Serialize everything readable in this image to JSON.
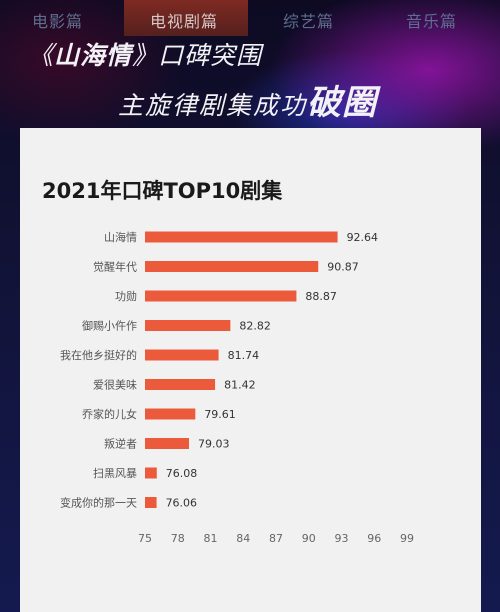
{
  "tabs": [
    "电影篇",
    "电视剧篇",
    "综艺篇",
    "音乐篇"
  ],
  "active_tab": 1,
  "headline": {
    "line1_open": "《",
    "line1_title": "山海情",
    "line1_close": "》",
    "line1_rest": "口碑突围",
    "line2_main": "主旋律剧集成功",
    "line2_emph": "破圈"
  },
  "chart_data": {
    "type": "bar",
    "orientation": "horizontal",
    "title": "2021年口碑TOP10剧集",
    "categories": [
      "山海情",
      "觉醒年代",
      "功勋",
      "御赐小仵作",
      "我在他乡挺好的",
      "爱很美味",
      "乔家的儿女",
      "叛逆者",
      "扫黑风暴",
      "变成你的那一天"
    ],
    "values": [
      92.64,
      90.87,
      88.87,
      82.82,
      81.74,
      81.42,
      79.61,
      79.03,
      76.08,
      76.06
    ],
    "value_labels": [
      "92.64",
      "90.87",
      "88.87",
      "82.82",
      "81.74",
      "81.42",
      "79.61",
      "79.03",
      "76.08",
      "76.06"
    ],
    "xlim": [
      75,
      99
    ],
    "xticks": [
      75,
      78,
      81,
      84,
      87,
      90,
      93,
      96,
      99
    ],
    "grid": false,
    "bar_color": "#ec5a3c"
  }
}
